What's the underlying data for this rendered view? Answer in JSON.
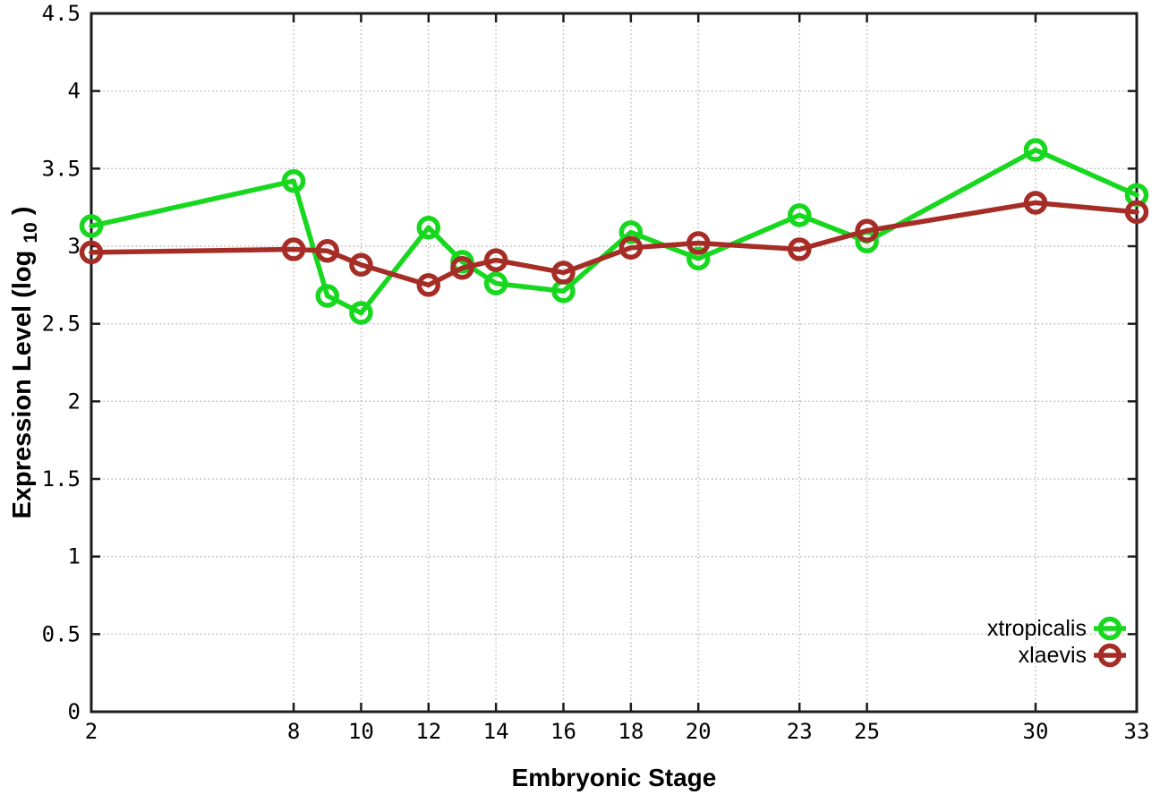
{
  "chart_data": {
    "type": "line",
    "title": "",
    "xlabel": "Embryonic Stage",
    "ylabel": "Expression Level (log10)",
    "x": [
      2,
      8,
      9,
      10,
      12,
      13,
      14,
      16,
      18,
      20,
      23,
      25,
      30,
      33
    ],
    "series": [
      {
        "name": "xtropicalis",
        "color": "#17d81f",
        "values": [
          3.13,
          3.42,
          2.68,
          2.57,
          3.12,
          2.9,
          2.76,
          2.71,
          3.09,
          2.92,
          3.2,
          3.03,
          3.62,
          3.33
        ]
      },
      {
        "name": "xlaevis",
        "color": "#a52d26",
        "values": [
          2.96,
          2.98,
          2.97,
          2.88,
          2.75,
          2.86,
          2.91,
          2.83,
          2.99,
          3.02,
          2.98,
          3.1,
          3.28,
          3.22
        ]
      }
    ],
    "xlim": [
      2,
      33
    ],
    "ylim": [
      0,
      4.5
    ],
    "xticks": {
      "values": [
        2,
        8,
        10,
        12,
        14,
        16,
        18,
        20,
        23,
        25,
        30,
        33
      ],
      "labels": [
        "2",
        "8",
        "10",
        "12",
        "14",
        "16",
        "18",
        "20",
        "23",
        "25",
        "30",
        "33"
      ]
    },
    "yticks": {
      "values": [
        0,
        0.5,
        1,
        1.5,
        2,
        2.5,
        3,
        3.5,
        4,
        4.5
      ],
      "labels": [
        "0",
        "0.5",
        "1",
        "1.5",
        "2",
        "2.5",
        "3",
        "3.5",
        "4",
        "4.5"
      ]
    },
    "grid": true,
    "legend_position": "inside-bottom-right",
    "marker": "open-circle"
  },
  "labels": {
    "ylabel_main": "Expression Level (log",
    "ylabel_sub": "10",
    "ylabel_close": ")"
  },
  "style": {
    "grid_color": "#b5b5b5",
    "border_color": "#1c1c1c",
    "background": "#ffffff"
  }
}
